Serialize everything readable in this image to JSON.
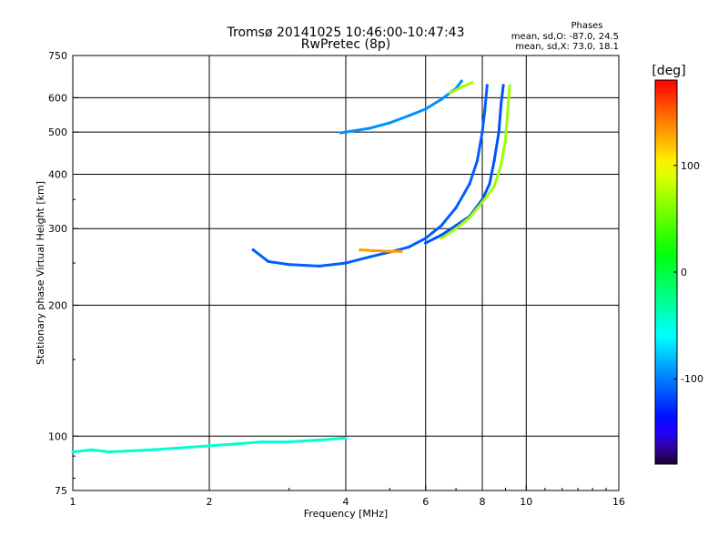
{
  "header": {
    "title_line1": "Tromsø 20141025 10:46:00-10:47:43",
    "title_line2": "RwPretec (8p)"
  },
  "stats": {
    "heading": "Phases",
    "o_line": "mean, sd,O: -87.0, 24.5",
    "x_line": "mean, sd,X:  73.0, 18.1"
  },
  "chart_data": {
    "type": "scatter",
    "xlabel": "Frequency [MHz]",
    "ylabel": "Stationary phase Virtual Height [km]",
    "x_scale": "log",
    "y_scale": "log",
    "xlim": [
      1,
      16
    ],
    "ylim": [
      75,
      750
    ],
    "x_ticks": [
      1,
      2,
      4,
      6,
      8,
      10,
      16
    ],
    "y_ticks": [
      75,
      100,
      200,
      300,
      400,
      500,
      600,
      750
    ],
    "grid": true,
    "colorbar": {
      "label": "[deg]",
      "range": [
        -180,
        180
      ],
      "ticks": [
        100,
        0,
        -100
      ]
    },
    "series": [
      {
        "kind": "curve",
        "points": [
          [
            2.5,
            268
          ],
          [
            2.7,
            252
          ],
          [
            3.0,
            248
          ],
          [
            3.5,
            246
          ],
          [
            4.0,
            250
          ],
          [
            4.5,
            258
          ],
          [
            5.0,
            265
          ],
          [
            5.5,
            272
          ],
          [
            6.0,
            285
          ],
          [
            6.5,
            305
          ],
          [
            7.0,
            335
          ],
          [
            7.5,
            380
          ],
          [
            7.8,
            430
          ],
          [
            8.0,
            500
          ],
          [
            8.1,
            560
          ],
          [
            8.2,
            640
          ]
        ],
        "phase": -110
      },
      {
        "kind": "curve",
        "points": [
          [
            3.9,
            498
          ],
          [
            4.5,
            510
          ],
          [
            5.0,
            525
          ],
          [
            5.5,
            545
          ],
          [
            6.0,
            565
          ],
          [
            6.5,
            595
          ],
          [
            7.0,
            630
          ],
          [
            7.2,
            655
          ]
        ],
        "phase": -95
      },
      {
        "kind": "curve",
        "points": [
          [
            6.0,
            278
          ],
          [
            6.5,
            290
          ],
          [
            7.0,
            305
          ],
          [
            7.5,
            320
          ],
          [
            8.0,
            350
          ],
          [
            8.3,
            380
          ],
          [
            8.5,
            430
          ],
          [
            8.7,
            500
          ],
          [
            8.8,
            580
          ],
          [
            8.9,
            640
          ]
        ],
        "phase": -115
      },
      {
        "kind": "curve",
        "points": [
          [
            6.5,
            285
          ],
          [
            7.0,
            300
          ],
          [
            7.5,
            318
          ],
          [
            8.0,
            345
          ],
          [
            8.5,
            375
          ],
          [
            8.8,
            420
          ],
          [
            9.0,
            480
          ],
          [
            9.1,
            560
          ],
          [
            9.2,
            640
          ]
        ],
        "phase": 70
      },
      {
        "kind": "curve",
        "points": [
          [
            6.8,
            615
          ],
          [
            7.2,
            635
          ],
          [
            7.6,
            650
          ]
        ],
        "phase": 70
      },
      {
        "kind": "curve",
        "points": [
          [
            4.3,
            268
          ],
          [
            4.6,
            267
          ],
          [
            5.0,
            266
          ],
          [
            5.3,
            266
          ]
        ],
        "phase": 130
      },
      {
        "kind": "curve",
        "points": [
          [
            1.0,
            92
          ],
          [
            1.1,
            93
          ],
          [
            1.2,
            92
          ],
          [
            1.5,
            93
          ],
          [
            2.0,
            95
          ],
          [
            2.3,
            96
          ],
          [
            2.6,
            97
          ],
          [
            3.0,
            97
          ],
          [
            3.5,
            98
          ],
          [
            4.0,
            99
          ]
        ],
        "phase": -45
      }
    ]
  }
}
